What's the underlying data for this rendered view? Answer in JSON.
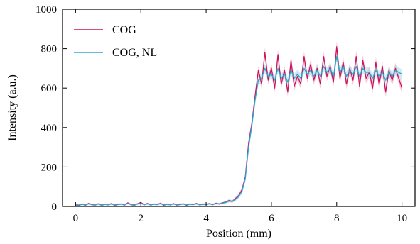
{
  "chart_data": {
    "type": "line",
    "title": "",
    "xlabel": "Position (mm)",
    "ylabel": "Intensity (a.u.)",
    "xlim": [
      -0.4,
      10.4
    ],
    "ylim": [
      0,
      1000
    ],
    "xticks": [
      0,
      2,
      4,
      6,
      8,
      10
    ],
    "yticks": [
      0,
      200,
      400,
      600,
      800,
      1000
    ],
    "xtick_labels": [
      "0",
      "2",
      "4",
      "6",
      "8",
      "10"
    ],
    "ytick_labels": [
      "0",
      "200",
      "400",
      "600",
      "800",
      "1000"
    ],
    "grid": false,
    "legend_position": "top-left",
    "series": [
      {
        "name": "COG",
        "color": "#d0125a",
        "band": "#e8a0c0",
        "x": [
          0.0,
          0.1,
          0.2,
          0.3,
          0.4,
          0.5,
          0.6,
          0.7,
          0.8,
          0.9,
          1.0,
          1.1,
          1.2,
          1.3,
          1.4,
          1.5,
          1.6,
          1.7,
          1.8,
          1.9,
          2.0,
          2.1,
          2.2,
          2.3,
          2.4,
          2.5,
          2.6,
          2.7,
          2.8,
          2.9,
          3.0,
          3.1,
          3.2,
          3.3,
          3.4,
          3.5,
          3.6,
          3.7,
          3.8,
          3.9,
          4.0,
          4.1,
          4.2,
          4.3,
          4.4,
          4.5,
          4.6,
          4.7,
          4.8,
          4.9,
          5.0,
          5.1,
          5.2,
          5.3,
          5.4,
          5.5,
          5.6,
          5.7,
          5.8,
          5.9,
          6.0,
          6.1,
          6.2,
          6.3,
          6.4,
          6.5,
          6.6,
          6.7,
          6.8,
          6.9,
          7.0,
          7.1,
          7.2,
          7.3,
          7.4,
          7.5,
          7.6,
          7.7,
          7.8,
          7.9,
          8.0,
          8.1,
          8.2,
          8.3,
          8.4,
          8.5,
          8.6,
          8.7,
          8.8,
          8.9,
          9.0,
          9.1,
          9.2,
          9.3,
          9.4,
          9.5,
          9.6,
          9.7,
          9.8,
          9.9,
          10.0
        ],
        "values": [
          8,
          5,
          12,
          6,
          15,
          9,
          7,
          13,
          6,
          11,
          8,
          14,
          6,
          10,
          12,
          7,
          18,
          9,
          6,
          13,
          20,
          8,
          15,
          7,
          12,
          9,
          16,
          6,
          11,
          8,
          14,
          7,
          10,
          13,
          6,
          12,
          9,
          15,
          8,
          11,
          10,
          14,
          9,
          16,
          12,
          18,
          22,
          30,
          25,
          40,
          55,
          85,
          150,
          320,
          420,
          560,
          690,
          620,
          780,
          640,
          700,
          600,
          770,
          620,
          690,
          580,
          740,
          610,
          660,
          620,
          760,
          650,
          720,
          640,
          700,
          620,
          760,
          660,
          710,
          630,
          810,
          650,
          730,
          620,
          700,
          640,
          760,
          610,
          740,
          650,
          680,
          600,
          730,
          620,
          710,
          580,
          690,
          640,
          700,
          650,
          600
        ],
        "band_width": [
          4,
          4,
          4,
          4,
          4,
          4,
          4,
          4,
          4,
          4,
          4,
          4,
          4,
          4,
          4,
          4,
          4,
          4,
          4,
          4,
          4,
          4,
          4,
          4,
          4,
          4,
          4,
          4,
          4,
          4,
          4,
          4,
          4,
          4,
          4,
          4,
          4,
          4,
          4,
          4,
          4,
          4,
          4,
          4,
          4,
          4,
          5,
          6,
          6,
          8,
          10,
          12,
          16,
          20,
          22,
          22,
          24,
          24,
          26,
          24,
          24,
          24,
          26,
          24,
          24,
          24,
          26,
          24,
          24,
          24,
          26,
          24,
          26,
          24,
          26,
          24,
          26,
          24,
          26,
          24,
          28,
          26,
          28,
          26,
          28,
          26,
          28,
          26,
          28,
          26,
          28,
          26,
          28,
          26,
          28,
          26,
          28,
          26,
          28,
          26,
          28
        ]
      },
      {
        "name": "COG, NL",
        "color": "#29a9d0",
        "band": "#a8dcea",
        "x": [
          0.0,
          0.1,
          0.2,
          0.3,
          0.4,
          0.5,
          0.6,
          0.7,
          0.8,
          0.9,
          1.0,
          1.1,
          1.2,
          1.3,
          1.4,
          1.5,
          1.6,
          1.7,
          1.8,
          1.9,
          2.0,
          2.1,
          2.2,
          2.3,
          2.4,
          2.5,
          2.6,
          2.7,
          2.8,
          2.9,
          3.0,
          3.1,
          3.2,
          3.3,
          3.4,
          3.5,
          3.6,
          3.7,
          3.8,
          3.9,
          4.0,
          4.1,
          4.2,
          4.3,
          4.4,
          4.5,
          4.6,
          4.7,
          4.8,
          4.9,
          5.0,
          5.1,
          5.2,
          5.3,
          5.4,
          5.5,
          5.6,
          5.7,
          5.8,
          5.9,
          6.0,
          6.1,
          6.2,
          6.3,
          6.4,
          6.5,
          6.6,
          6.7,
          6.8,
          6.9,
          7.0,
          7.1,
          7.2,
          7.3,
          7.4,
          7.5,
          7.6,
          7.7,
          7.8,
          7.9,
          8.0,
          8.1,
          8.2,
          8.3,
          8.4,
          8.5,
          8.6,
          8.7,
          8.8,
          8.9,
          9.0,
          9.1,
          9.2,
          9.3,
          9.4,
          9.5,
          9.6,
          9.7,
          9.8,
          9.9,
          10.0
        ],
        "values": [
          10,
          7,
          11,
          8,
          13,
          10,
          9,
          12,
          8,
          10,
          9,
          12,
          8,
          11,
          11,
          9,
          15,
          10,
          8,
          12,
          16,
          9,
          13,
          9,
          11,
          10,
          14,
          8,
          11,
          9,
          12,
          9,
          11,
          12,
          8,
          11,
          10,
          13,
          9,
          11,
          11,
          13,
          10,
          14,
          13,
          16,
          20,
          27,
          25,
          36,
          50,
          78,
          140,
          300,
          410,
          540,
          640,
          650,
          700,
          660,
          670,
          640,
          700,
          650,
          670,
          630,
          690,
          650,
          670,
          650,
          700,
          670,
          690,
          660,
          690,
          660,
          710,
          680,
          700,
          660,
          760,
          680,
          710,
          660,
          690,
          670,
          710,
          660,
          700,
          680,
          680,
          650,
          690,
          660,
          680,
          640,
          680,
          660,
          690,
          680,
          670
        ],
        "band_width": [
          5,
          5,
          5,
          5,
          5,
          5,
          5,
          5,
          5,
          5,
          5,
          5,
          5,
          5,
          5,
          5,
          5,
          5,
          5,
          5,
          5,
          5,
          5,
          5,
          5,
          5,
          5,
          5,
          5,
          5,
          5,
          5,
          5,
          5,
          5,
          5,
          5,
          5,
          5,
          5,
          5,
          5,
          5,
          5,
          5,
          5,
          6,
          7,
          7,
          9,
          11,
          13,
          17,
          22,
          24,
          24,
          24,
          24,
          24,
          24,
          24,
          24,
          24,
          24,
          24,
          24,
          24,
          24,
          24,
          24,
          24,
          24,
          24,
          24,
          24,
          24,
          24,
          24,
          24,
          24,
          26,
          24,
          26,
          24,
          26,
          24,
          26,
          24,
          26,
          24,
          26,
          24,
          26,
          24,
          26,
          24,
          26,
          24,
          26,
          24,
          26
        ]
      }
    ]
  }
}
